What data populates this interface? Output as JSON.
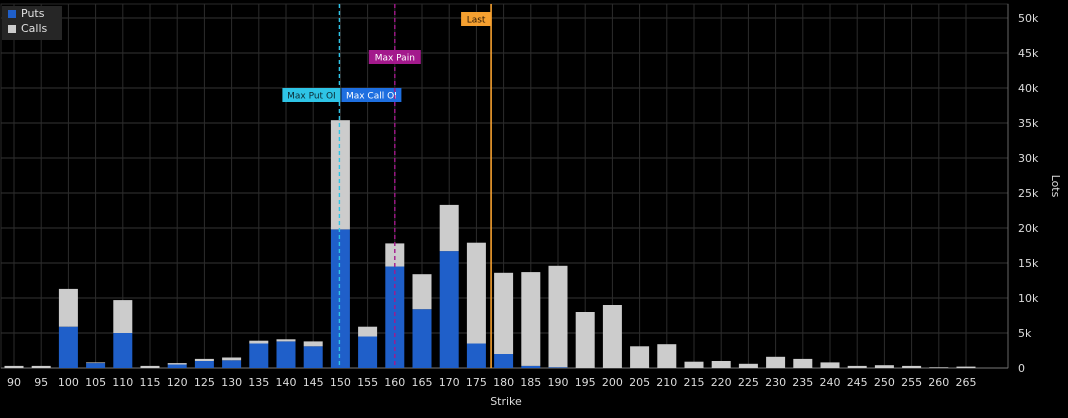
{
  "chart_data": {
    "type": "bar",
    "stacked": true,
    "xlabel": "Strike",
    "ylabel": "Lots",
    "ylim": [
      0,
      52000
    ],
    "yticks": [
      "0",
      "5k",
      "10k",
      "15k",
      "20k",
      "25k",
      "30k",
      "35k",
      "40k",
      "45k",
      "50k"
    ],
    "categories": [
      "90",
      "95",
      "100",
      "105",
      "110",
      "115",
      "120",
      "125",
      "130",
      "135",
      "140",
      "145",
      "150",
      "155",
      "160",
      "165",
      "170",
      "175",
      "180",
      "185",
      "190",
      "195",
      "200",
      "205",
      "210",
      "215",
      "220",
      "225",
      "230",
      "235",
      "240",
      "245",
      "250",
      "255",
      "260",
      "265"
    ],
    "series": [
      {
        "name": "Puts",
        "color": "#1f5fc9",
        "values": [
          0,
          0,
          5900,
          700,
          5000,
          0,
          500,
          1000,
          1100,
          3500,
          3800,
          3100,
          19800,
          4500,
          14500,
          8400,
          16700,
          3500,
          2000,
          300,
          100,
          0,
          0,
          0,
          0,
          0,
          0,
          0,
          0,
          0,
          0,
          0,
          0,
          0,
          0,
          0
        ]
      },
      {
        "name": "Calls",
        "color": "#cccccc",
        "values": [
          300,
          300,
          5400,
          100,
          4700,
          300,
          200,
          300,
          400,
          400,
          300,
          700,
          15600,
          1400,
          3300,
          5000,
          6600,
          14400,
          11600,
          13400,
          14500,
          8000,
          9000,
          3100,
          3400,
          900,
          1000,
          600,
          1600,
          1300,
          800,
          300,
          400,
          300,
          100,
          200
        ]
      }
    ],
    "annotations": [
      {
        "label": "Max Put OI",
        "strike": 150,
        "color": "#2ec4e6",
        "text_color": "#0b2a33"
      },
      {
        "label": "Max Call OI",
        "strike": 150,
        "color": "#1e6fe0",
        "text_color": "#ffffff"
      },
      {
        "label": "Max Pain",
        "strike": 160,
        "color": "#a3198c",
        "text_color": "#ffffff"
      },
      {
        "label": "Last",
        "strike": 177.7,
        "color": "#f5a030",
        "text_color": "#2a1500"
      }
    ],
    "grid": true,
    "legend": "top-left"
  }
}
